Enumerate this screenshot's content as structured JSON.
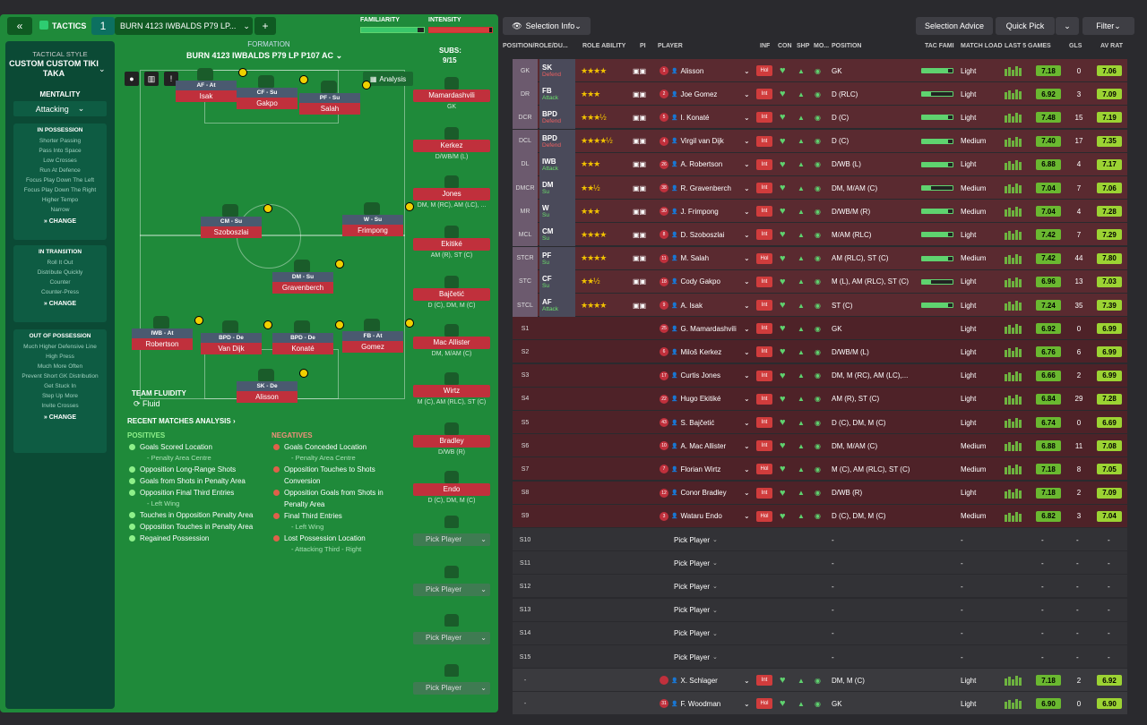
{
  "topbar": {
    "tactics_label": "TACTICS",
    "slot": "1",
    "tactic_name": "BURN 4123 IWBALDS P79 LP...",
    "familiarity_label": "FAMILIARITY",
    "intensity_label": "INTENSITY"
  },
  "sidebar": {
    "style_label": "TACTICAL STYLE",
    "style_name": "CUSTOM CUSTOM TIKI TAKA",
    "mentality_label": "MENTALITY",
    "mentality_value": "Attacking",
    "in_possession": {
      "title": "IN POSSESSION",
      "items": [
        "Shorter Passing",
        "Pass Into Space",
        "Low Crosses",
        "Run At Defence",
        "Focus Play Down The Left",
        "Focus Play Down The Right",
        "Higher Tempo",
        "Narrow"
      ]
    },
    "in_transition": {
      "title": "IN TRANSITION",
      "items": [
        "Roll It Out",
        "Distribute Quickly",
        "Counter",
        "Counter-Press"
      ]
    },
    "out_of_possession": {
      "title": "OUT OF POSSESSION",
      "items": [
        "Much Higher Defensive Line",
        "High Press",
        "Much More Often",
        "Prevent Short GK Distribution",
        "Get Stuck In",
        "Step Up More",
        "Invite Crosses"
      ]
    },
    "change_label": "CHANGE"
  },
  "formation": {
    "label": "FORMATION",
    "name": "BURN 4123 IWBALDS P79 LP P107 AC",
    "subs_label": "SUBS:",
    "subs_count": "9/15",
    "analysis_label": "Analysis"
  },
  "pitch_players": [
    {
      "role": "AF - At",
      "name": "Isak"
    },
    {
      "role": "CF - Su",
      "name": "Gakpo"
    },
    {
      "role": "PF - Su",
      "name": "Salah"
    },
    {
      "role": "CM - Su",
      "name": "Szoboszlai"
    },
    {
      "role": "W - Su",
      "name": "Frimpong"
    },
    {
      "role": "DM - Su",
      "name": "Gravenberch"
    },
    {
      "role": "IWB - At",
      "name": "Robertson"
    },
    {
      "role": "BPD - De",
      "name": "Van Dijk"
    },
    {
      "role": "BPD - De",
      "name": "Konaté"
    },
    {
      "role": "FB - At",
      "name": "Gomez"
    },
    {
      "role": "SK - De",
      "name": "Alisson"
    }
  ],
  "subs": [
    {
      "name": "Mamardashvili",
      "pos": "GK"
    },
    {
      "name": "Kerkez",
      "pos": "D/WB/M (L)"
    },
    {
      "name": "Jones",
      "pos": "DM, M (RC), AM (LC), ..."
    },
    {
      "name": "Ekitiké",
      "pos": "AM (R), ST (C)"
    },
    {
      "name": "Bajčetić",
      "pos": "D (C), DM, M (C)"
    },
    {
      "name": "Mac Allister",
      "pos": "DM, M/AM (C)"
    },
    {
      "name": "Wirtz",
      "pos": "M (C), AM (RLC), ST (C)"
    },
    {
      "name": "Bradley",
      "pos": "D/WB (R)"
    },
    {
      "name": "Endo",
      "pos": "D (C), DM, M (C)"
    }
  ],
  "pick_player": "Pick Player",
  "team_fluidity": {
    "label": "TEAM FLUIDITY",
    "value": "Fluid"
  },
  "analysis": {
    "title": "RECENT MATCHES ANALYSIS",
    "positives_label": "POSITIVES",
    "negatives_label": "NEGATIVES",
    "positives": [
      {
        "t": "Goals Scored Location",
        "s": "- Penalty Area Centre"
      },
      {
        "t": "Opposition Long-Range Shots",
        "s": ""
      },
      {
        "t": "Goals from Shots in Penalty Area",
        "s": ""
      },
      {
        "t": "Opposition Final Third Entries",
        "s": "- Left Wing"
      },
      {
        "t": "Touches in Opposition Penalty Area",
        "s": ""
      },
      {
        "t": "Opposition Touches in Penalty Area",
        "s": ""
      },
      {
        "t": "Regained Possession",
        "s": ""
      }
    ],
    "negatives": [
      {
        "t": "Goals Conceded Location",
        "s": "- Penalty Area Centre"
      },
      {
        "t": "Opposition Touches to Shots Conversion",
        "s": ""
      },
      {
        "t": "Opposition Goals from Shots in Penalty Area",
        "s": ""
      },
      {
        "t": "Final Third Entries",
        "s": "- Left Wing"
      },
      {
        "t": "Lost Possession Location",
        "s": "- Attacking Third - Right"
      }
    ]
  },
  "right_toolbar": {
    "selection_info": "Selection Info",
    "selection_advice": "Selection Advice",
    "quick_pick": "Quick Pick",
    "filter": "Filter"
  },
  "columns": [
    "POSITION/ROLE/DU...",
    "ROLE ABILITY",
    "PI",
    "PLAYER",
    "INF",
    "CON",
    "SHP",
    "MO...",
    "POSITION",
    "TAC FAMI",
    "MATCH LOAD",
    "LAST 5 GAMES",
    "GLS",
    "AV RAT"
  ],
  "rows": [
    {
      "pos": "GK",
      "role": "SK",
      "duty": "Defend",
      "stars": "★★★★",
      "num": "1",
      "player": "Alisson",
      "inf": "Hol",
      "position": "GK",
      "load": "Light",
      "r5": "7.18",
      "gls": "0",
      "av": "7.06",
      "fam": 0.85
    },
    {
      "pos": "DR",
      "role": "FB",
      "duty": "Attack",
      "stars": "★★★",
      "num": "2",
      "player": "Joe Gomez",
      "inf": "Int",
      "position": "D (RLC)",
      "load": "Light",
      "r5": "6.92",
      "gls": "3",
      "av": "7.09",
      "fam": 0.3
    },
    {
      "pos": "DCR",
      "role": "BPD",
      "duty": "Defend",
      "stars": "★★★½",
      "num": "5",
      "player": "I. Konaté",
      "inf": "Int",
      "position": "D (C)",
      "load": "Light",
      "r5": "7.48",
      "gls": "15",
      "av": "7.19",
      "fam": 0.85
    },
    {
      "pos": "DCL",
      "role": "BPD",
      "duty": "Defend",
      "stars": "★★★★½",
      "num": "4",
      "player": "Virgil van Dijk",
      "inf": "Int",
      "position": "D (C)",
      "load": "Medium",
      "r5": "7.40",
      "gls": "17",
      "av": "7.35",
      "fam": 0.85
    },
    {
      "pos": "DL",
      "role": "IWB",
      "duty": "Attack",
      "stars": "★★★",
      "num": "26",
      "player": "A. Robertson",
      "inf": "Int",
      "position": "D/WB (L)",
      "load": "Light",
      "r5": "6.88",
      "gls": "4",
      "av": "7.17",
      "fam": 0.85
    },
    {
      "pos": "DMCR",
      "role": "DM",
      "duty": "Su",
      "stars": "★★½",
      "num": "38",
      "player": "R. Gravenberch",
      "inf": "Int",
      "position": "DM, M/AM (C)",
      "load": "Medium",
      "r5": "7.04",
      "gls": "7",
      "av": "7.06",
      "fam": 0.3
    },
    {
      "pos": "MR",
      "role": "W",
      "duty": "Su",
      "stars": "★★★",
      "num": "30",
      "player": "J. Frimpong",
      "inf": "Int",
      "position": "D/WB/M (R)",
      "load": "Medium",
      "r5": "7.04",
      "gls": "4",
      "av": "7.28",
      "fam": 0.85
    },
    {
      "pos": "MCL",
      "role": "CM",
      "duty": "Su",
      "stars": "★★★★",
      "num": "8",
      "player": "D. Szoboszlai",
      "inf": "Int",
      "position": "M/AM (RLC)",
      "load": "Light",
      "r5": "7.42",
      "gls": "7",
      "av": "7.29",
      "fam": 0.85
    },
    {
      "pos": "STCR",
      "role": "PF",
      "duty": "Su",
      "stars": "★★★★",
      "num": "11",
      "player": "M. Salah",
      "inf": "Hol",
      "position": "AM (RLC), ST (C)",
      "load": "Medium",
      "r5": "7.42",
      "gls": "44",
      "av": "7.80",
      "fam": 0.85
    },
    {
      "pos": "STC",
      "role": "CF",
      "duty": "Su",
      "stars": "★★½",
      "num": "18",
      "player": "Cody Gakpo",
      "inf": "Int",
      "position": "M (L), AM (RLC), ST (C)",
      "load": "Light",
      "r5": "6.96",
      "gls": "13",
      "av": "7.03",
      "fam": 0.3
    },
    {
      "pos": "STCL",
      "role": "AF",
      "duty": "Attack",
      "stars": "★★★★",
      "num": "9",
      "player": "A. Isak",
      "inf": "Int",
      "position": "ST (C)",
      "load": "Light",
      "r5": "7.24",
      "gls": "35",
      "av": "7.39",
      "fam": 0.85
    },
    {
      "pos": "S1",
      "role": "",
      "duty": "",
      "stars": "",
      "num": "25",
      "player": "G. Mamardashvili",
      "inf": "Int",
      "position": "GK",
      "load": "Light",
      "r5": "6.92",
      "gls": "0",
      "av": "6.99",
      "fam": 0
    },
    {
      "pos": "S2",
      "role": "",
      "duty": "",
      "stars": "",
      "num": "6",
      "player": "Miloš Kerkez",
      "inf": "Int",
      "position": "D/WB/M (L)",
      "load": "Light",
      "r5": "6.76",
      "gls": "6",
      "av": "6.99",
      "fam": 0
    },
    {
      "pos": "S3",
      "role": "",
      "duty": "",
      "stars": "",
      "num": "17",
      "player": "Curtis Jones",
      "inf": "Int",
      "position": "DM, M (RC), AM (LC),...",
      "load": "Light",
      "r5": "6.66",
      "gls": "2",
      "av": "6.99",
      "fam": 0
    },
    {
      "pos": "S4",
      "role": "",
      "duty": "",
      "stars": "",
      "num": "22",
      "player": "Hugo Ekitiké",
      "inf": "Int",
      "position": "AM (R), ST (C)",
      "load": "Light",
      "r5": "6.84",
      "gls": "29",
      "av": "7.28",
      "fam": 0
    },
    {
      "pos": "S5",
      "role": "",
      "duty": "",
      "stars": "",
      "num": "43",
      "player": "S. Bajčetić",
      "inf": "Int",
      "position": "D (C), DM, M (C)",
      "load": "Light",
      "r5": "6.74",
      "gls": "0",
      "av": "6.69",
      "fam": 0
    },
    {
      "pos": "S6",
      "role": "",
      "duty": "",
      "stars": "",
      "num": "10",
      "player": "A. Mac Allister",
      "inf": "Int",
      "position": "DM, M/AM (C)",
      "load": "Medium",
      "r5": "6.88",
      "gls": "11",
      "av": "7.08",
      "fam": 0
    },
    {
      "pos": "S7",
      "role": "",
      "duty": "",
      "stars": "",
      "num": "7",
      "player": "Florian Wirtz",
      "inf": "Hol",
      "position": "M (C), AM (RLC), ST (C)",
      "load": "Medium",
      "r5": "7.18",
      "gls": "8",
      "av": "7.05",
      "fam": 0
    },
    {
      "pos": "S8",
      "role": "",
      "duty": "",
      "stars": "",
      "num": "12",
      "player": "Conor Bradley",
      "inf": "Int",
      "position": "D/WB (R)",
      "load": "Light",
      "r5": "7.18",
      "gls": "2",
      "av": "7.09",
      "fam": 0
    },
    {
      "pos": "S9",
      "role": "",
      "duty": "",
      "stars": "",
      "num": "3",
      "player": "Wataru Endo",
      "inf": "Hol",
      "position": "D (C), DM, M (C)",
      "load": "Medium",
      "r5": "6.82",
      "gls": "3",
      "av": "7.04",
      "fam": 0
    },
    {
      "pos": "S10",
      "empty": true
    },
    {
      "pos": "S11",
      "empty": true
    },
    {
      "pos": "S12",
      "empty": true
    },
    {
      "pos": "S13",
      "empty": true
    },
    {
      "pos": "S14",
      "empty": true
    },
    {
      "pos": "S15",
      "empty": true
    },
    {
      "pos": "-",
      "role": "",
      "duty": "",
      "stars": "",
      "num": "",
      "player": "X. Schlager",
      "inf": "Int",
      "position": "DM, M (C)",
      "load": "Light",
      "r5": "7.18",
      "gls": "2",
      "av": "6.92",
      "fam": 0
    },
    {
      "pos": "-",
      "role": "",
      "duty": "",
      "stars": "",
      "num": "31",
      "player": "F. Woodman",
      "inf": "Hol",
      "position": "GK",
      "load": "Light",
      "r5": "6.90",
      "gls": "0",
      "av": "6.90",
      "fam": 0
    }
  ],
  "dash": "-"
}
